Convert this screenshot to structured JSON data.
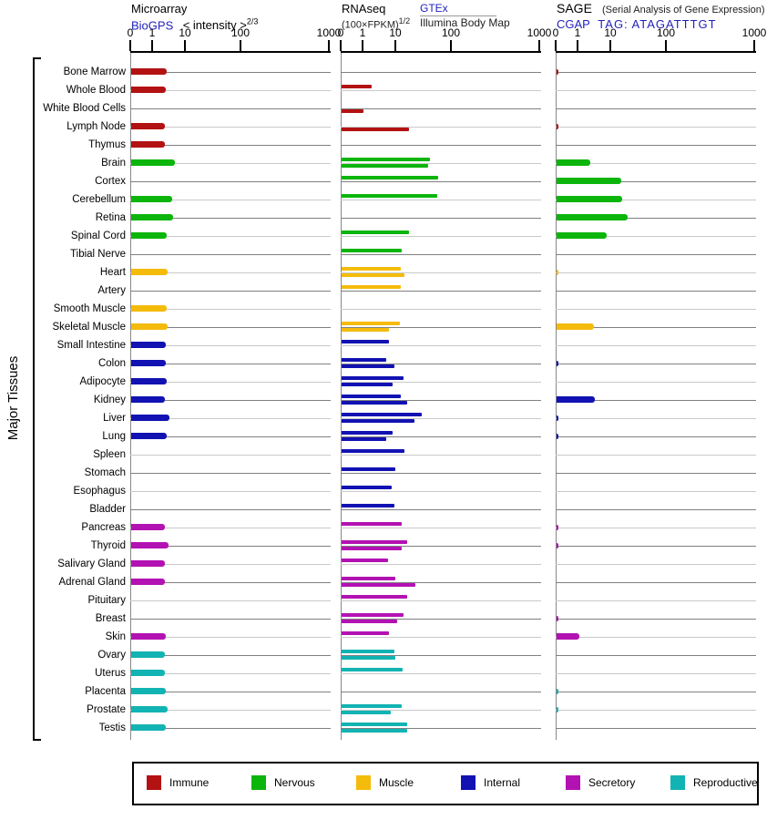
{
  "y_axis_label": "Major Tissues",
  "axis": {
    "ticks": [
      "0",
      "1",
      "10",
      "100",
      "1000"
    ]
  },
  "panels": {
    "microarray": {
      "title": "Microarray",
      "source_link": "BioGPS",
      "subtitle": "< intensity >",
      "subtitle_sup": "2/3"
    },
    "rnaseq": {
      "title": "RNAseq",
      "subtitle": "(100×FPKM)",
      "subtitle_sup": "1/2",
      "source_link": "GTEx",
      "source2": "Illumina Body Map"
    },
    "sage": {
      "title": "SAGE",
      "title_note": "(Serial Analysis of Gene Expression)",
      "source_link": "CGAP",
      "tag_label": "TAG: ATAGATTTGT"
    }
  },
  "legend": [
    {
      "label": "Immune",
      "color": "#b31212"
    },
    {
      "label": "Nervous",
      "color": "#0cb50c"
    },
    {
      "label": "Muscle",
      "color": "#f5bb0b"
    },
    {
      "label": "Internal",
      "color": "#1212b3"
    },
    {
      "label": "Secretory",
      "color": "#b312b3"
    },
    {
      "label": "Reproductive",
      "color": "#12b3b3"
    }
  ],
  "chart_data": {
    "type": "bar",
    "orientation": "horizontal",
    "scale": "compressed log, ticks 0 / 1 / 10 / 100 / 1000 per panel",
    "panels": [
      "Microarray (BioGPS)",
      "RNAseq (GTEx above line, Illumina Body Map below line)",
      "SAGE (CGAP TAG: ATAGATTTGT)"
    ],
    "grid": "one horizontal line per tissue, alternating dark/light gray",
    "tissues": [
      {
        "name": "Bone Marrow",
        "group": "Immune",
        "microarray": 2.6,
        "rnaseq_gtex": null,
        "rnaseq_illumina": null,
        "sage": 0.1
      },
      {
        "name": "Whole Blood",
        "group": "Immune",
        "microarray": 2.4,
        "rnaseq_gtex": 1.8,
        "rnaseq_illumina": null,
        "sage": null
      },
      {
        "name": "White Blood Cells",
        "group": "Immune",
        "microarray": null,
        "rnaseq_gtex": null,
        "rnaseq_illumina": 1.0,
        "sage": null
      },
      {
        "name": "Lymph Node",
        "group": "Immune",
        "microarray": 2.3,
        "rnaseq_gtex": null,
        "rnaseq_illumina": 17,
        "sage": 0.1
      },
      {
        "name": "Thymus",
        "group": "Immune",
        "microarray": 2.3,
        "rnaseq_gtex": null,
        "rnaseq_illumina": null,
        "sage": null
      },
      {
        "name": "Brain",
        "group": "Nervous",
        "microarray": 4.6,
        "rnaseq_gtex": 41,
        "rnaseq_illumina": 38,
        "sage": 2.3
      },
      {
        "name": "Cortex",
        "group": "Nervous",
        "microarray": null,
        "rnaseq_gtex": 57,
        "rnaseq_illumina": null,
        "sage": 15
      },
      {
        "name": "Cerebellum",
        "group": "Nervous",
        "microarray": 3.8,
        "rnaseq_gtex": 55,
        "rnaseq_illumina": null,
        "sage": 16
      },
      {
        "name": "Retina",
        "group": "Nervous",
        "microarray": 4.1,
        "rnaseq_gtex": null,
        "rnaseq_illumina": null,
        "sage": 20
      },
      {
        "name": "Spinal Cord",
        "group": "Nervous",
        "microarray": 2.6,
        "rnaseq_gtex": 17,
        "rnaseq_illumina": null,
        "sage": 7.2
      },
      {
        "name": "Tibial Nerve",
        "group": "Nervous",
        "microarray": null,
        "rnaseq_gtex": 12.5,
        "rnaseq_illumina": null,
        "sage": null
      },
      {
        "name": "Heart",
        "group": "Muscle",
        "microarray": 2.8,
        "rnaseq_gtex": 12,
        "rnaseq_illumina": 14,
        "sage": 0.1
      },
      {
        "name": "Artery",
        "group": "Muscle",
        "microarray": null,
        "rnaseq_gtex": 12,
        "rnaseq_illumina": null,
        "sage": null
      },
      {
        "name": "Smooth Muscle",
        "group": "Muscle",
        "microarray": 2.6,
        "rnaseq_gtex": null,
        "rnaseq_illumina": null,
        "sage": null
      },
      {
        "name": "Skeletal Muscle",
        "group": "Muscle",
        "microarray": 2.8,
        "rnaseq_gtex": 11.6,
        "rnaseq_illumina": 6,
        "sage": 3.0
      },
      {
        "name": "Small Intestine",
        "group": "Internal",
        "microarray": 2.4,
        "rnaseq_gtex": 6,
        "rnaseq_illumina": null,
        "sage": null
      },
      {
        "name": "Colon",
        "group": "Internal",
        "microarray": 2.4,
        "rnaseq_gtex": 5,
        "rnaseq_illumina": 8.8,
        "sage": 0.1
      },
      {
        "name": "Adipocyte",
        "group": "Internal",
        "microarray": 2.6,
        "rnaseq_gtex": 13.5,
        "rnaseq_illumina": 7.7,
        "sage": null
      },
      {
        "name": "Kidney",
        "group": "Internal",
        "microarray": 2.3,
        "rnaseq_gtex": 12,
        "rnaseq_illumina": 16,
        "sage": 3.2
      },
      {
        "name": "Liver",
        "group": "Internal",
        "microarray": 3.2,
        "rnaseq_gtex": 29,
        "rnaseq_illumina": 21,
        "sage": 0.1
      },
      {
        "name": "Lung",
        "group": "Internal",
        "microarray": 2.6,
        "rnaseq_gtex": 7.7,
        "rnaseq_illumina": 5,
        "sage": 0.1
      },
      {
        "name": "Spleen",
        "group": "Internal",
        "microarray": null,
        "rnaseq_gtex": 14,
        "rnaseq_illumina": null,
        "sage": null
      },
      {
        "name": "Stomach",
        "group": "Internal",
        "microarray": null,
        "rnaseq_gtex": 9.4,
        "rnaseq_illumina": null,
        "sage": null
      },
      {
        "name": "Esophagus",
        "group": "Internal",
        "microarray": null,
        "rnaseq_gtex": 7.3,
        "rnaseq_illumina": null,
        "sage": null
      },
      {
        "name": "Bladder",
        "group": "Internal",
        "microarray": null,
        "rnaseq_gtex": 8.8,
        "rnaseq_illumina": null,
        "sage": null
      },
      {
        "name": "Pancreas",
        "group": "Secretory",
        "microarray": 2.3,
        "rnaseq_gtex": 12.5,
        "rnaseq_illumina": null,
        "sage": 0.1
      },
      {
        "name": "Thyroid",
        "group": "Secretory",
        "microarray": 3.0,
        "rnaseq_gtex": 16,
        "rnaseq_illumina": 12.5,
        "sage": 0.1
      },
      {
        "name": "Salivary Gland",
        "group": "Secretory",
        "microarray": 2.3,
        "rnaseq_gtex": 5.6,
        "rnaseq_illumina": null,
        "sage": null
      },
      {
        "name": "Adrenal Gland",
        "group": "Secretory",
        "microarray": 2.3,
        "rnaseq_gtex": 9.4,
        "rnaseq_illumina": 22.5,
        "sage": null
      },
      {
        "name": "Pituitary",
        "group": "Secretory",
        "microarray": null,
        "rnaseq_gtex": 16,
        "rnaseq_illumina": null,
        "sage": null
      },
      {
        "name": "Breast",
        "group": "Secretory",
        "microarray": null,
        "rnaseq_gtex": 13.5,
        "rnaseq_illumina": 10.4,
        "sage": 0.1
      },
      {
        "name": "Skin",
        "group": "Secretory",
        "microarray": 2.4,
        "rnaseq_gtex": 6,
        "rnaseq_illumina": null,
        "sage": 1.1
      },
      {
        "name": "Ovary",
        "group": "Reproductive",
        "microarray": 2.3,
        "rnaseq_gtex": 8.8,
        "rnaseq_illumina": 9.4,
        "sage": null
      },
      {
        "name": "Uterus",
        "group": "Reproductive",
        "microarray": 2.3,
        "rnaseq_gtex": 13,
        "rnaseq_illumina": null,
        "sage": null
      },
      {
        "name": "Placenta",
        "group": "Reproductive",
        "microarray": 2.4,
        "rnaseq_gtex": null,
        "rnaseq_illumina": null,
        "sage": 0.1
      },
      {
        "name": "Prostate",
        "group": "Reproductive",
        "microarray": 2.8,
        "rnaseq_gtex": 12.5,
        "rnaseq_illumina": 6.8,
        "sage": 0.1
      },
      {
        "name": "Testis",
        "group": "Reproductive",
        "microarray": 2.4,
        "rnaseq_gtex": 16,
        "rnaseq_illumina": 16,
        "sage": null
      }
    ]
  }
}
